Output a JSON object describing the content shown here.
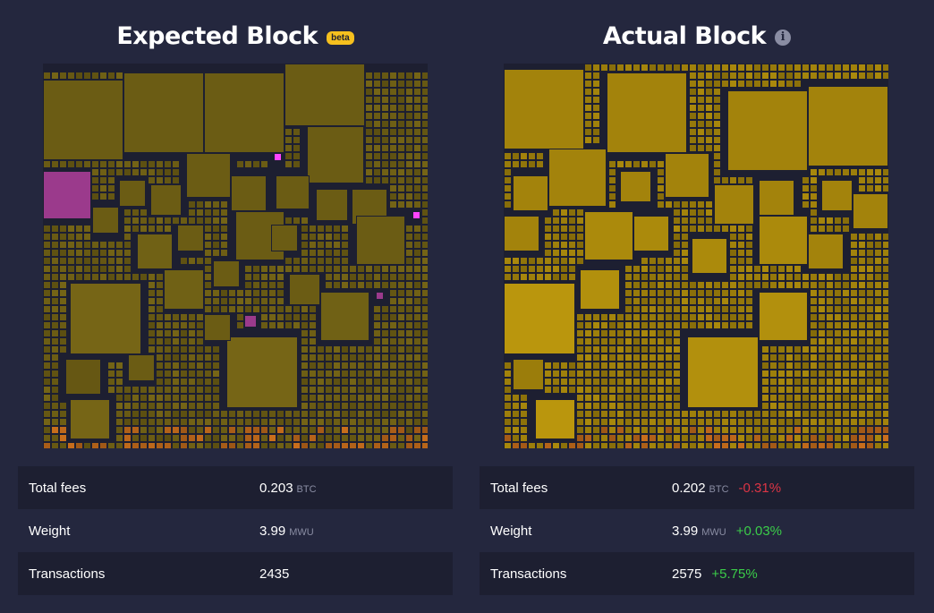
{
  "expected": {
    "title": "Expected Block",
    "badge": "beta",
    "stats": {
      "total_fees_label": "Total fees",
      "total_fees_value": "0.203",
      "total_fees_unit": "BTC",
      "weight_label": "Weight",
      "weight_value": "3.99",
      "weight_unit": "MWU",
      "transactions_label": "Transactions",
      "transactions_value": "2435"
    }
  },
  "actual": {
    "title": "Actual Block",
    "info_icon": "info-icon",
    "stats": {
      "total_fees_label": "Total fees",
      "total_fees_value": "0.202",
      "total_fees_unit": "BTC",
      "total_fees_delta": "-0.31%",
      "weight_label": "Weight",
      "weight_value": "3.99",
      "weight_unit": "MWU",
      "weight_delta": "+0.03%",
      "transactions_label": "Transactions",
      "transactions_value": "2575",
      "transactions_delta": "+5.75%"
    }
  },
  "colors": {
    "background": "#24273e",
    "card": "#1d1f31",
    "expected_tx": "#6b5c14",
    "expected_highlight": "#9b3a8c",
    "actual_tx": "#9b7d0b",
    "negative": "#dc3545",
    "positive": "#3bcc49",
    "badge": "#f6c01e"
  }
}
